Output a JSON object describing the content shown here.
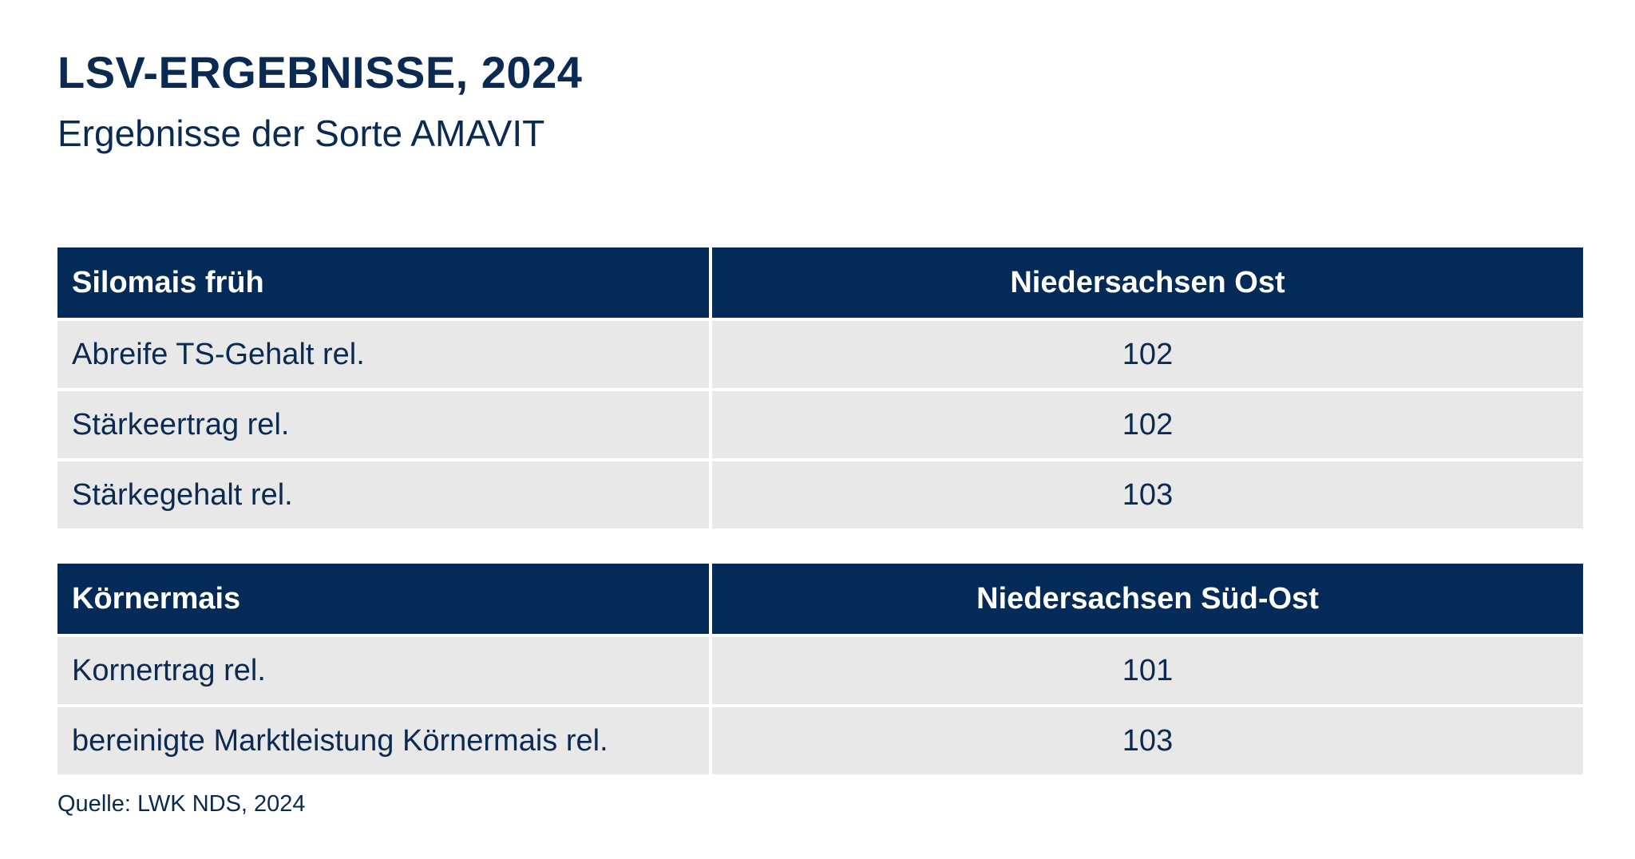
{
  "title": "LSV-ERGEBNISSE, 2024",
  "subtitle": "Ergebnisse der Sorte AMAVIT",
  "source": "Quelle: LWK NDS, 2024",
  "colors": {
    "header_bg": "#042a57",
    "row_bg": "#e8e8e9",
    "text": "#0a2a52"
  },
  "chart_data": [
    {
      "type": "table",
      "columns": [
        "Silomais früh",
        "Niedersachsen Ost"
      ],
      "rows": [
        [
          "Abreife TS-Gehalt rel.",
          "102"
        ],
        [
          "Stärkeertrag rel.",
          "102"
        ],
        [
          "Stärkegehalt rel.",
          "103"
        ]
      ]
    },
    {
      "type": "table",
      "columns": [
        "Körnermais",
        "Niedersachsen Süd-Ost"
      ],
      "rows": [
        [
          "Kornertrag rel.",
          "101"
        ],
        [
          "bereinigte Marktleistung Körnermais rel.",
          "103"
        ]
      ]
    }
  ]
}
